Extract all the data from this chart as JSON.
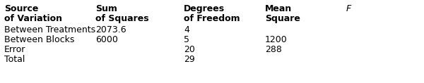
{
  "col_headers_line1": [
    "Source",
    "Sum",
    "Degrees",
    "Mean",
    "F"
  ],
  "col_headers_line2": [
    "of Variation",
    "of Squares",
    "of Freedom",
    "Square",
    ""
  ],
  "rows": [
    [
      "Between Treatments",
      "2073.6",
      "4",
      "",
      ""
    ],
    [
      "Between Blocks",
      "6000",
      "5",
      "1200",
      ""
    ],
    [
      "Error",
      "",
      "20",
      "288",
      ""
    ],
    [
      "Total",
      "",
      "29",
      "",
      ""
    ]
  ],
  "col_x_points": [
    6,
    135,
    260,
    375,
    490
  ],
  "header_bold": true,
  "font_size": 9.0,
  "italic_col": 4,
  "bg_color": "#ffffff",
  "text_color": "#000000",
  "fig_width": 6.0,
  "fig_height": 1.18,
  "dpi": 100
}
